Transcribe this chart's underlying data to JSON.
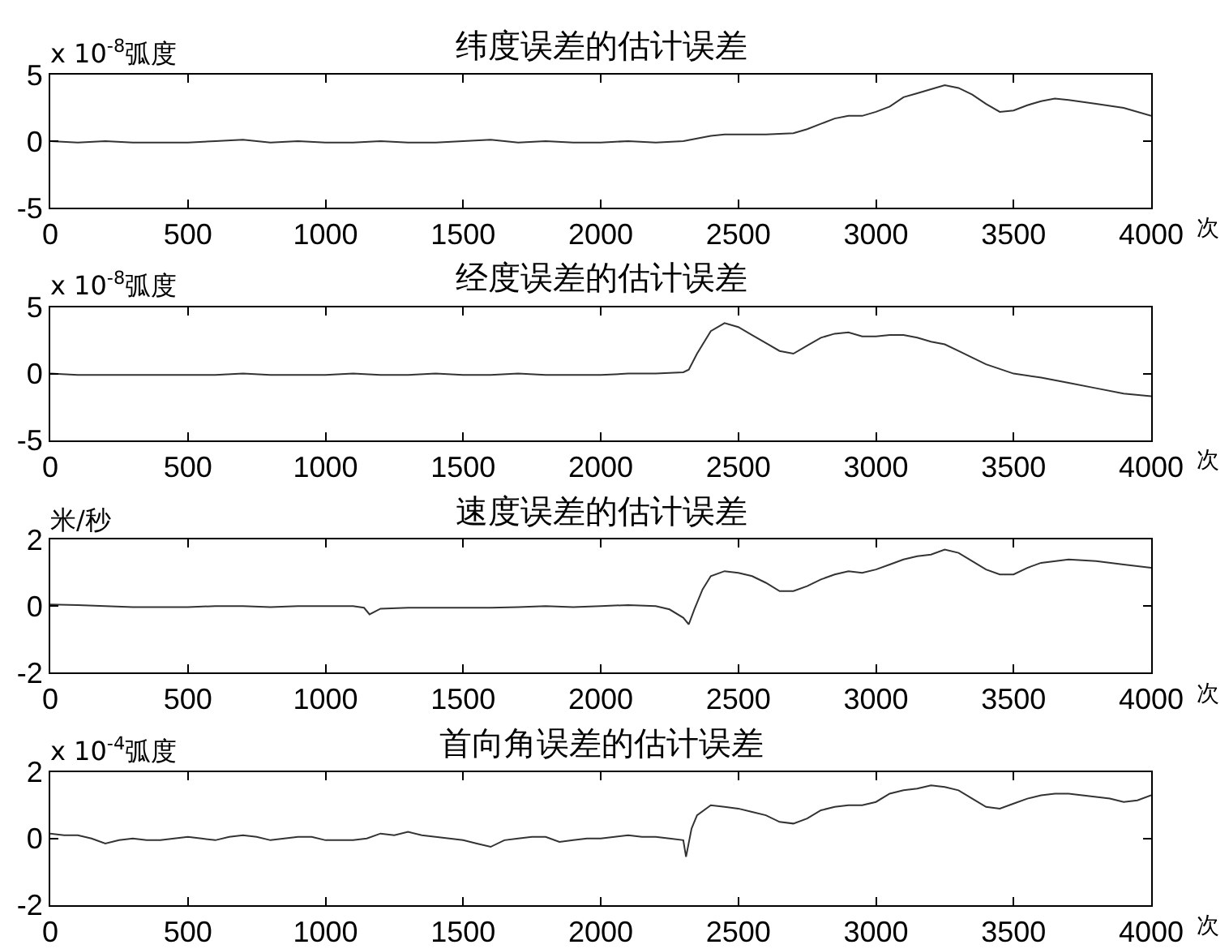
{
  "chart_data": [
    {
      "type": "line",
      "title": "纬度误差的估计误差",
      "ylabel": "x 10$^{-8}$弧度",
      "xlabel": "次",
      "color": "#333333",
      "xlim": [
        0,
        4000
      ],
      "xticks": [
        0,
        500,
        1000,
        1500,
        2000,
        2500,
        3000,
        3500,
        4000
      ],
      "ylim": [
        -5,
        5
      ],
      "yticks": [
        -5,
        0,
        5
      ],
      "x": [
        0,
        100,
        200,
        300,
        400,
        500,
        600,
        700,
        800,
        900,
        1000,
        1100,
        1200,
        1300,
        1400,
        1500,
        1600,
        1700,
        1800,
        1900,
        2000,
        2100,
        2200,
        2300,
        2350,
        2400,
        2450,
        2500,
        2600,
        2700,
        2750,
        2800,
        2850,
        2900,
        2950,
        3000,
        3050,
        3100,
        3150,
        3200,
        3250,
        3300,
        3350,
        3400,
        3450,
        3500,
        3550,
        3600,
        3650,
        3700,
        3800,
        3900,
        4000
      ],
      "values": [
        0.0,
        -0.1,
        0.0,
        -0.1,
        -0.1,
        -0.1,
        0.0,
        0.1,
        -0.1,
        0.0,
        -0.1,
        -0.1,
        0.0,
        -0.1,
        -0.1,
        0.0,
        0.1,
        -0.1,
        0.0,
        -0.1,
        -0.1,
        0.0,
        -0.1,
        0.0,
        0.2,
        0.4,
        0.5,
        0.5,
        0.5,
        0.6,
        0.9,
        1.3,
        1.7,
        1.9,
        1.9,
        2.2,
        2.6,
        3.3,
        3.6,
        3.9,
        4.2,
        4.0,
        3.5,
        2.8,
        2.2,
        2.3,
        2.7,
        3.0,
        3.2,
        3.1,
        2.8,
        2.5,
        1.9
      ]
    },
    {
      "type": "line",
      "title": "经度误差的估计误差",
      "ylabel": "x 10$^{-8}$弧度",
      "xlabel": "次",
      "color": "#333333",
      "xlim": [
        0,
        4000
      ],
      "xticks": [
        0,
        500,
        1000,
        1500,
        2000,
        2500,
        3000,
        3500,
        4000
      ],
      "ylim": [
        -5,
        5
      ],
      "yticks": [
        -5,
        0,
        5
      ],
      "x": [
        0,
        100,
        200,
        300,
        400,
        500,
        600,
        700,
        800,
        900,
        1000,
        1100,
        1200,
        1300,
        1400,
        1500,
        1600,
        1700,
        1800,
        1900,
        2000,
        2100,
        2200,
        2300,
        2320,
        2350,
        2400,
        2450,
        2500,
        2550,
        2600,
        2650,
        2700,
        2750,
        2800,
        2850,
        2900,
        2950,
        3000,
        3050,
        3100,
        3150,
        3200,
        3250,
        3300,
        3350,
        3400,
        3500,
        3600,
        3700,
        3800,
        3900,
        4000
      ],
      "values": [
        0.0,
        -0.1,
        -0.1,
        -0.1,
        -0.1,
        -0.1,
        -0.1,
        0.0,
        -0.1,
        -0.1,
        -0.1,
        0.0,
        -0.1,
        -0.1,
        0.0,
        -0.1,
        -0.1,
        0.0,
        -0.1,
        -0.1,
        -0.1,
        0.0,
        0.0,
        0.1,
        0.3,
        1.5,
        3.2,
        3.8,
        3.5,
        2.9,
        2.3,
        1.7,
        1.5,
        2.1,
        2.7,
        3.0,
        3.1,
        2.8,
        2.8,
        2.9,
        2.9,
        2.7,
        2.4,
        2.2,
        1.7,
        1.2,
        0.7,
        0.0,
        -0.3,
        -0.7,
        -1.1,
        -1.5,
        -1.7
      ]
    },
    {
      "type": "line",
      "title": "速度误差的估计误差",
      "ylabel": "米/秒",
      "xlabel": "次",
      "color": "#333333",
      "xlim": [
        0,
        4000
      ],
      "xticks": [
        0,
        500,
        1000,
        1500,
        2000,
        2500,
        3000,
        3500,
        4000
      ],
      "ylim": [
        -2,
        2
      ],
      "yticks": [
        -2,
        0,
        2
      ],
      "x": [
        0,
        100,
        200,
        300,
        400,
        500,
        600,
        700,
        800,
        900,
        1000,
        1100,
        1140,
        1160,
        1200,
        1300,
        1400,
        1500,
        1600,
        1700,
        1800,
        1900,
        2000,
        2100,
        2200,
        2250,
        2300,
        2320,
        2340,
        2370,
        2400,
        2450,
        2500,
        2550,
        2600,
        2650,
        2700,
        2750,
        2800,
        2850,
        2900,
        2950,
        3000,
        3050,
        3100,
        3150,
        3200,
        3250,
        3300,
        3350,
        3400,
        3450,
        3500,
        3550,
        3600,
        3700,
        3800,
        3900,
        4000
      ],
      "values": [
        0.05,
        0.03,
        0.0,
        -0.03,
        -0.03,
        -0.03,
        0.0,
        0.0,
        -0.03,
        0.0,
        0.0,
        0.0,
        -0.05,
        -0.25,
        -0.08,
        -0.05,
        -0.05,
        -0.05,
        -0.05,
        -0.03,
        0.0,
        -0.03,
        0.0,
        0.03,
        0.0,
        -0.1,
        -0.35,
        -0.55,
        -0.1,
        0.5,
        0.9,
        1.05,
        1.0,
        0.9,
        0.7,
        0.45,
        0.45,
        0.6,
        0.8,
        0.95,
        1.05,
        1.0,
        1.1,
        1.25,
        1.4,
        1.5,
        1.55,
        1.7,
        1.6,
        1.35,
        1.1,
        0.95,
        0.95,
        1.15,
        1.3,
        1.4,
        1.35,
        1.25,
        1.15
      ]
    },
    {
      "type": "line",
      "title": "首向角误差的估计误差",
      "ylabel": "x 10$^{-4}$弧度",
      "xlabel": "次",
      "color": "#333333",
      "xlim": [
        0,
        4000
      ],
      "xticks": [
        0,
        500,
        1000,
        1500,
        2000,
        2500,
        3000,
        3500,
        4000
      ],
      "ylim": [
        -2,
        2
      ],
      "yticks": [
        -2,
        0,
        2
      ],
      "x": [
        0,
        50,
        100,
        150,
        200,
        250,
        300,
        350,
        400,
        450,
        500,
        550,
        600,
        650,
        700,
        750,
        800,
        850,
        900,
        950,
        1000,
        1050,
        1100,
        1150,
        1200,
        1250,
        1300,
        1350,
        1400,
        1450,
        1500,
        1550,
        1600,
        1650,
        1700,
        1750,
        1800,
        1850,
        1900,
        1950,
        2000,
        2050,
        2100,
        2150,
        2200,
        2250,
        2300,
        2310,
        2330,
        2350,
        2400,
        2450,
        2500,
        2550,
        2600,
        2650,
        2700,
        2750,
        2800,
        2850,
        2900,
        2950,
        3000,
        3050,
        3100,
        3150,
        3200,
        3250,
        3300,
        3350,
        3400,
        3450,
        3500,
        3550,
        3600,
        3650,
        3700,
        3750,
        3800,
        3850,
        3900,
        3950,
        4000
      ],
      "values": [
        0.15,
        0.1,
        0.1,
        0.0,
        -0.15,
        -0.05,
        0.0,
        -0.05,
        -0.05,
        0.0,
        0.05,
        0.0,
        -0.05,
        0.05,
        0.1,
        0.05,
        -0.05,
        0.0,
        0.05,
        0.05,
        -0.05,
        -0.05,
        -0.05,
        0.0,
        0.15,
        0.1,
        0.2,
        0.1,
        0.05,
        0.0,
        -0.05,
        -0.15,
        -0.25,
        -0.05,
        0.0,
        0.05,
        0.05,
        -0.1,
        -0.05,
        0.0,
        0.0,
        0.05,
        0.1,
        0.05,
        0.05,
        0.0,
        -0.05,
        -0.55,
        0.3,
        0.7,
        1.0,
        0.95,
        0.9,
        0.8,
        0.7,
        0.5,
        0.45,
        0.6,
        0.85,
        0.95,
        1.0,
        1.0,
        1.1,
        1.35,
        1.45,
        1.5,
        1.6,
        1.55,
        1.45,
        1.2,
        0.95,
        0.9,
        1.05,
        1.2,
        1.3,
        1.35,
        1.35,
        1.3,
        1.25,
        1.2,
        1.1,
        1.15,
        1.3
      ]
    }
  ]
}
